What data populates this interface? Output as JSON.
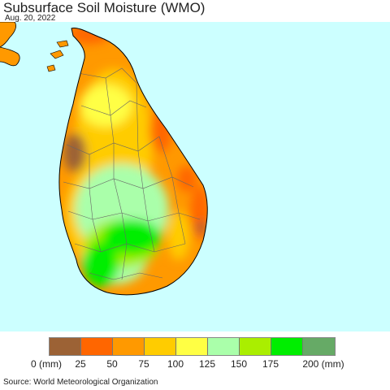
{
  "header": {
    "title": "Subsurface Soil Moisture (WMO)",
    "date": "Aug. 20, 2022"
  },
  "legend": {
    "colors": [
      "#9c6235",
      "#ff6600",
      "#ff9900",
      "#ffcc00",
      "#ffff44",
      "#aaffaa",
      "#aaee00",
      "#00ee00",
      "#66aa66"
    ],
    "labels": [
      "0 (mm)",
      "25",
      "50",
      "75",
      "100",
      "125",
      "150",
      "175",
      "200 (mm)"
    ]
  },
  "footer": {
    "source": "Source: World Meteorological Organization"
  }
}
